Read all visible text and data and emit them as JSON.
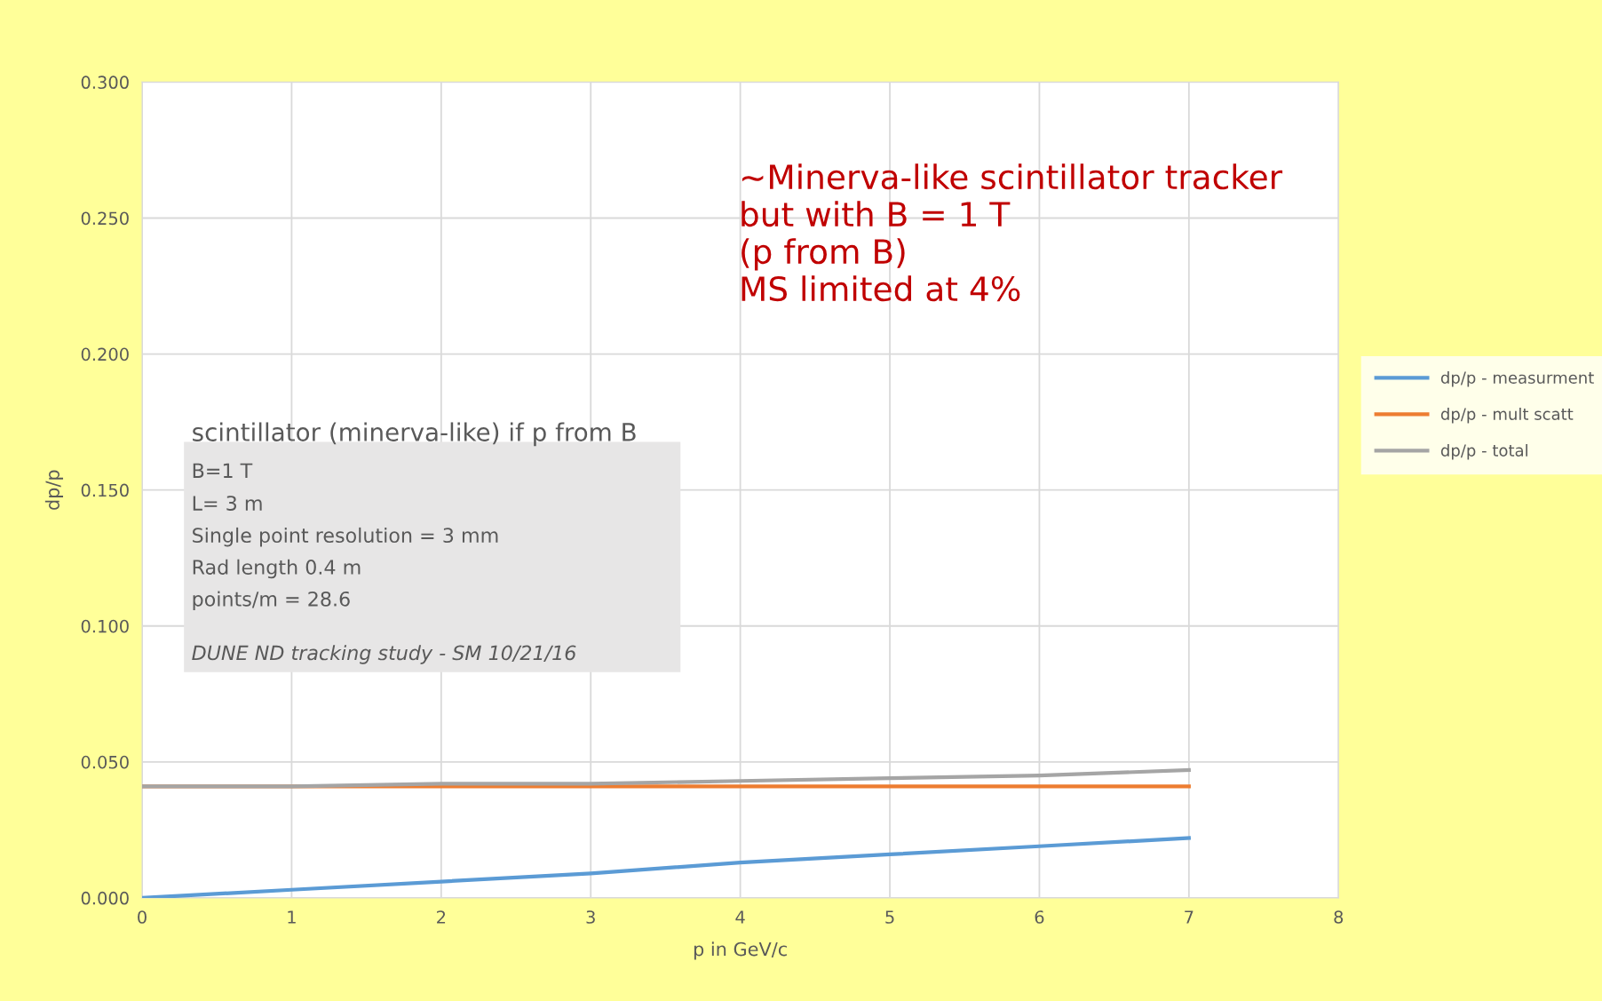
{
  "chart_data": {
    "type": "line",
    "xlabel": "p in GeV/c",
    "ylabel": "dp/p",
    "x": [
      0,
      1,
      2,
      3,
      4,
      5,
      6,
      7
    ],
    "series": [
      {
        "name": "dp/p - measurment",
        "color": "#5b9bd5",
        "values": [
          0.0,
          0.003,
          0.006,
          0.009,
          0.013,
          0.016,
          0.019,
          0.022
        ]
      },
      {
        "name": "dp/p - mult scatt",
        "color": "#ed7d31",
        "values": [
          0.041,
          0.041,
          0.041,
          0.041,
          0.041,
          0.041,
          0.041,
          0.041
        ]
      },
      {
        "name": "dp/p - total",
        "color": "#a5a5a5",
        "values": [
          0.041,
          0.041,
          0.042,
          0.042,
          0.043,
          0.044,
          0.045,
          0.047
        ]
      }
    ],
    "xlim": [
      0,
      8
    ],
    "xticks": [
      0,
      1,
      2,
      3,
      4,
      5,
      6,
      7,
      8
    ],
    "ylim": [
      0,
      0.3
    ],
    "yticks": [
      {
        "value": 0,
        "label": "0.000"
      },
      {
        "value": 0.05,
        "label": "0.050"
      },
      {
        "value": 0.1,
        "label": "0.100"
      },
      {
        "value": 0.15,
        "label": "0.150"
      },
      {
        "value": 0.2,
        "label": "0.200"
      },
      {
        "value": 0.25,
        "label": "0.250"
      },
      {
        "value": 0.3,
        "label": "0.300"
      }
    ],
    "grid": true,
    "legend": "right",
    "marker": "none",
    "line_style": "solid",
    "annotations": [
      "~Minerva-like scintillator tracker\nbut with B = 1 T\n(p from B)\nMS limited at 4%",
      "scintillator (minerva-like) if p from B",
      "B=1 T",
      "L= 3 m",
      "Single point resolution = 3 mm",
      "Rad length 0.4 m",
      "points/m = 28.6",
      "DUNE ND tracking study - SM 10/21/16"
    ]
  }
}
